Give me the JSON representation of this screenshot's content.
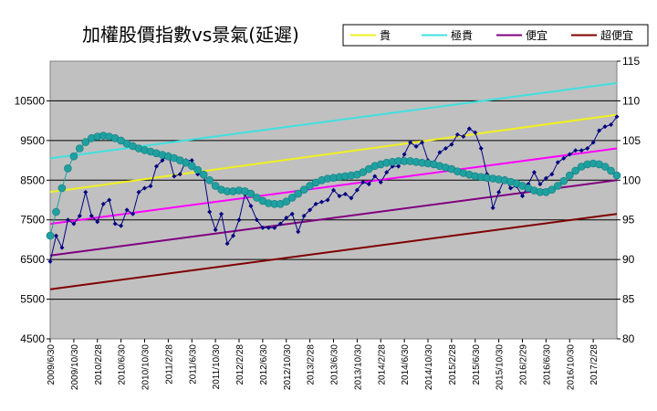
{
  "chart_data": {
    "type": "line",
    "title": "加權股價指數vs景氣(延遲)",
    "legend": {
      "placement": "top-right",
      "entries": [
        {
          "label": "貴",
          "color": "#f0f020"
        },
        {
          "label": "極貴",
          "color": "#40e0e0"
        },
        {
          "label": "便宜",
          "color": "#800080"
        },
        {
          "label": "超便宜",
          "color": "#800000"
        }
      ]
    },
    "y_left": {
      "min": 4500,
      "max": 11500,
      "ticks": [
        "4500",
        "5500",
        "6500",
        "7500",
        "8500",
        "9500",
        "10500"
      ],
      "tick_values": [
        4500,
        5500,
        6500,
        7500,
        8500,
        9500,
        10500
      ]
    },
    "y_right": {
      "min": 80,
      "max": 115,
      "ticks": [
        "80",
        "85",
        "90",
        "95",
        "100",
        "105",
        "110",
        "115"
      ],
      "tick_values": [
        80,
        85,
        90,
        95,
        100,
        105,
        110,
        115
      ]
    },
    "x_tick_labels": [
      "2009/6/30",
      "2009/10/30",
      "2010/2/28",
      "2010/6/30",
      "2010/10/30",
      "2011/2/28",
      "2011/6/30",
      "2011/10/30",
      "2012/2/28",
      "2012/6/30",
      "2012/10/30",
      "2013/2/28",
      "2013/6/30",
      "2013/10/30",
      "2014/2/28",
      "2014/6/30",
      "2014/10/30",
      "2015/2/28",
      "2015/6/30",
      "2015/10/30",
      "2016/2/29",
      "2016/6/30",
      "2016/10/30",
      "2017/2/28"
    ],
    "grid": true,
    "series": [
      {
        "name": "極貴",
        "color": "#40e0e0",
        "axis": "left",
        "values": [
          9050,
          10950
        ]
      },
      {
        "name": "貴",
        "color": "#f0f020",
        "axis": "left",
        "values": [
          8200,
          10150
        ]
      },
      {
        "name": "",
        "color": "#ff00ff",
        "axis": "left",
        "values": [
          7400,
          9300
        ]
      },
      {
        "name": "便宜",
        "color": "#800080",
        "axis": "left",
        "values": [
          6600,
          8500
        ]
      },
      {
        "name": "超便宜",
        "color": "#800000",
        "axis": "left",
        "values": [
          5750,
          7650
        ]
      },
      {
        "name": "",
        "color": "#000080",
        "axis": "left",
        "marker": "diamond",
        "values": [
          6450,
          7100,
          6800,
          7500,
          7400,
          7600,
          8200,
          7600,
          7450,
          7900,
          8000,
          7400,
          7350,
          7750,
          7650,
          8200,
          8300,
          8350,
          8850,
          9000,
          9150,
          8600,
          8650,
          9000,
          9000,
          8650,
          8650,
          7700,
          7250,
          7650,
          6900,
          7100,
          7500,
          8150,
          7850,
          7500,
          7300,
          7300,
          7300,
          7400,
          7550,
          7650,
          7200,
          7600,
          7750,
          7900,
          7950,
          8000,
          8250,
          8100,
          8150,
          8050,
          8250,
          8450,
          8400,
          8600,
          8450,
          8700,
          8850,
          8850,
          9150,
          9450,
          9350,
          9450,
          9000,
          8950,
          9200,
          9300,
          9400,
          9650,
          9600,
          9800,
          9700,
          9300,
          8650,
          7800,
          8200,
          8550,
          8300,
          8350,
          8100,
          8400,
          8700,
          8400,
          8550,
          8650,
          8950,
          9050,
          9150,
          9250,
          9250,
          9300,
          9450,
          9750,
          9850,
          9900,
          10100
        ]
      },
      {
        "name": "",
        "color": "#20a0a0",
        "axis": "right",
        "marker": "circle",
        "values": [
          93,
          96,
          99,
          101.5,
          103,
          104,
          104.8,
          105.3,
          105.5,
          105.6,
          105.5,
          105.3,
          105,
          104.6,
          104.3,
          104,
          103.8,
          103.6,
          103.4,
          103.2,
          103,
          102.8,
          102.5,
          102.2,
          101.8,
          101.3,
          100.7,
          100,
          99.3,
          98.8,
          98.6,
          98.6,
          98.7,
          98.6,
          98.3,
          97.8,
          97.4,
          97.1,
          97,
          97,
          97.3,
          97.8,
          98.3,
          98.8,
          99.3,
          99.7,
          100,
          100.2,
          100.3,
          100.4,
          100.5,
          100.6,
          100.7,
          101,
          101.4,
          101.8,
          102,
          102.2,
          102.3,
          102.4,
          102.4,
          102.4,
          102.3,
          102.2,
          102.1,
          102,
          101.8,
          101.6,
          101.4,
          101.1,
          100.9,
          100.7,
          100.5,
          100.4,
          100.3,
          100.2,
          100.1,
          100,
          99.8,
          99.6,
          99.3,
          99,
          98.7,
          98.5,
          98.5,
          98.8,
          99.3,
          99.9,
          100.6,
          101.2,
          101.7,
          102,
          102.1,
          102,
          101.7,
          101.2,
          100.6
        ]
      }
    ]
  }
}
